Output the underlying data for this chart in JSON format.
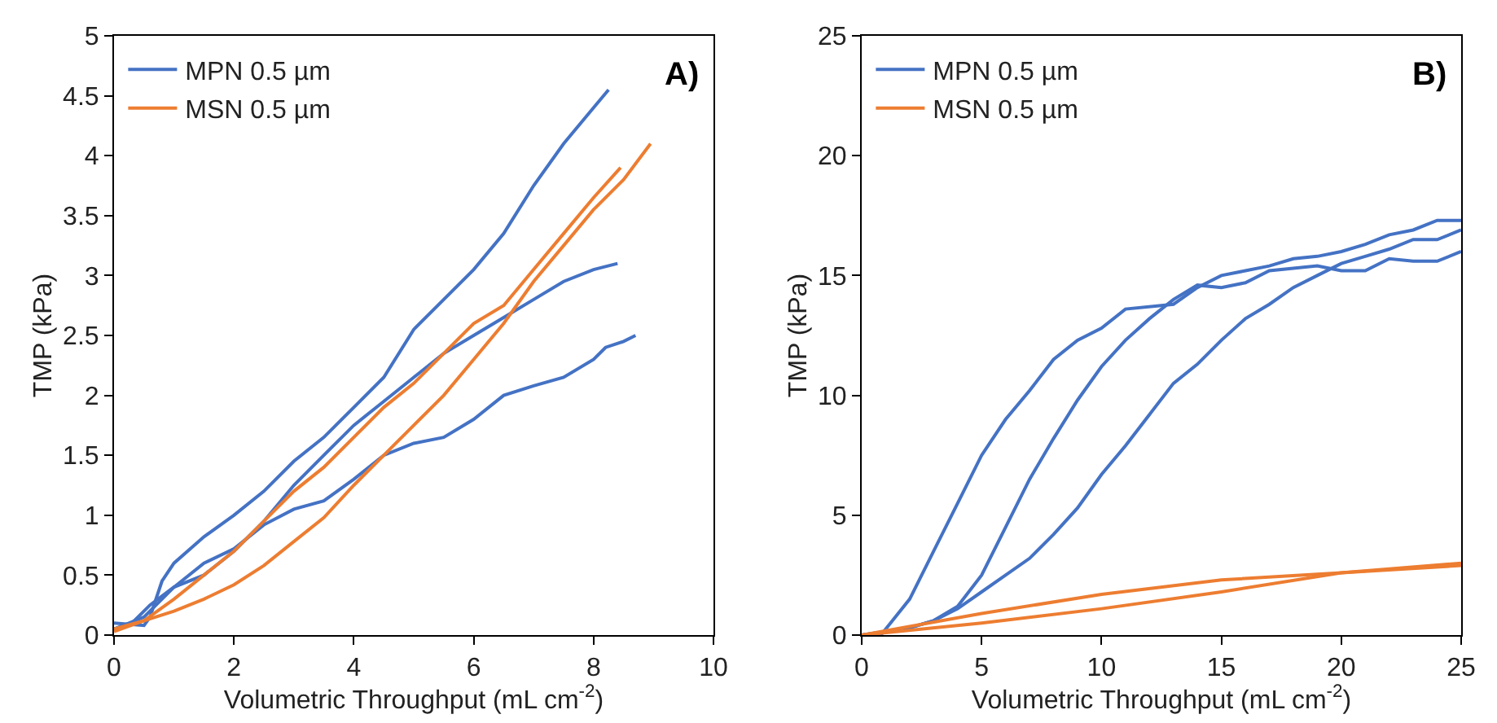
{
  "chart_data": [
    {
      "type": "line",
      "xlabel": "Volumetric Throughput (mL cm$^{-2}$)",
      "ylabel": "TMP (kPa)",
      "annotations": [
        "A)"
      ],
      "xlim": [
        0,
        10
      ],
      "xticks": [
        0,
        2,
        4,
        6,
        8,
        10
      ],
      "ylim": [
        0,
        5
      ],
      "yticks": [
        0,
        0.5,
        1,
        1.5,
        2,
        2.5,
        3,
        3.5,
        4,
        4.5,
        5
      ],
      "grid": false,
      "legend": "top left",
      "marker": "none",
      "line_style": "solid",
      "series": [
        {
          "name": "MPN 0.5 µm",
          "color": "#4472c4",
          "x": [
            0,
            0.5,
            0.6,
            0.8,
            1,
            1.5,
            2,
            2.5,
            3,
            3.5,
            4,
            4.5,
            5,
            5.5,
            6,
            6.5,
            7,
            7.5,
            8,
            8.25
          ],
          "values": [
            0.1,
            0.08,
            0.15,
            0.45,
            0.6,
            0.82,
            1.0,
            1.2,
            1.45,
            1.65,
            1.9,
            2.15,
            2.55,
            2.8,
            3.05,
            3.35,
            3.75,
            4.1,
            4.4,
            4.55
          ]
        },
        {
          "color": "#4472c4",
          "x": [
            0,
            0.3,
            0.6,
            1,
            1.5,
            2,
            2.5,
            3,
            3.5,
            4,
            4.5,
            5,
            5.5,
            6,
            6.5,
            7,
            7.5,
            8,
            8.4
          ],
          "values": [
            0.05,
            0.1,
            0.25,
            0.4,
            0.5,
            0.7,
            0.95,
            1.25,
            1.5,
            1.75,
            1.95,
            2.15,
            2.35,
            2.5,
            2.65,
            2.8,
            2.95,
            3.05,
            3.1
          ]
        },
        {
          "color": "#4472c4",
          "x": [
            0,
            0.5,
            1,
            1.5,
            2,
            2.5,
            3,
            3.5,
            4,
            4.5,
            5,
            5.5,
            6,
            6.5,
            7,
            7.5,
            8,
            8.2,
            8.5,
            8.7
          ],
          "values": [
            0.05,
            0.15,
            0.4,
            0.6,
            0.72,
            0.92,
            1.05,
            1.12,
            1.3,
            1.5,
            1.6,
            1.65,
            1.8,
            2.0,
            2.08,
            2.15,
            2.3,
            2.4,
            2.45,
            2.5
          ]
        },
        {
          "name": "MSN 0.5 µm",
          "color": "#ed7d31",
          "x": [
            0,
            0.5,
            1,
            1.5,
            2,
            2.5,
            3,
            3.5,
            4,
            4.5,
            5,
            5.5,
            6,
            6.5,
            7,
            7.5,
            8,
            8.45
          ],
          "values": [
            0.05,
            0.12,
            0.3,
            0.5,
            0.7,
            0.95,
            1.2,
            1.4,
            1.65,
            1.9,
            2.1,
            2.35,
            2.6,
            2.75,
            3.05,
            3.35,
            3.65,
            3.9
          ]
        },
        {
          "color": "#ed7d31",
          "x": [
            0,
            0.5,
            1,
            1.5,
            2,
            2.5,
            3,
            3.5,
            4,
            4.5,
            5,
            5.5,
            6,
            6.5,
            7,
            7.5,
            8,
            8.5,
            8.95
          ],
          "values": [
            0.03,
            0.12,
            0.2,
            0.3,
            0.42,
            0.58,
            0.78,
            0.98,
            1.25,
            1.5,
            1.75,
            2.0,
            2.3,
            2.6,
            2.95,
            3.25,
            3.55,
            3.8,
            4.1
          ]
        }
      ]
    },
    {
      "type": "line",
      "xlabel": "Volumetric Throughput (mL cm$^{-2}$)",
      "ylabel": "TMP (kPa)",
      "annotations": [
        "B)"
      ],
      "xlim": [
        0,
        25
      ],
      "xticks": [
        0,
        5,
        10,
        15,
        20,
        25
      ],
      "ylim": [
        0,
        25
      ],
      "yticks": [
        0,
        5,
        10,
        15,
        20,
        25
      ],
      "grid": false,
      "legend": "top left",
      "marker": "none",
      "line_style": "solid",
      "series": [
        {
          "name": "MPN 0.5 µm",
          "color": "#4472c4",
          "x": [
            0,
            0.8,
            2,
            3,
            4,
            5,
            6,
            7,
            8,
            9,
            10,
            11,
            13,
            14,
            15,
            16,
            17,
            18,
            19,
            20,
            21,
            22,
            23,
            24,
            25
          ],
          "values": [
            0,
            0,
            1.5,
            3.5,
            5.5,
            7.5,
            9,
            10.2,
            11.5,
            12.3,
            12.8,
            13.6,
            13.8,
            14.5,
            15,
            15.2,
            15.4,
            15.7,
            15.8,
            16,
            16.3,
            16.7,
            16.9,
            17.3,
            17.3
          ]
        },
        {
          "color": "#4472c4",
          "x": [
            0,
            2,
            3,
            4,
            5,
            6,
            7,
            8,
            9,
            10,
            11,
            12,
            13,
            14,
            15,
            16,
            17,
            18,
            19,
            20,
            21,
            22,
            23,
            24,
            25
          ],
          "values": [
            0,
            0.3,
            0.6,
            1.2,
            2.5,
            4.5,
            6.5,
            8.2,
            9.8,
            11.2,
            12.3,
            13.2,
            14.0,
            14.6,
            14.5,
            14.7,
            15.2,
            15.3,
            15.4,
            15.2,
            15.2,
            15.7,
            15.6,
            15.6,
            16.0
          ]
        },
        {
          "color": "#4472c4",
          "x": [
            0,
            2,
            3,
            4,
            5,
            6,
            7,
            8,
            9,
            10,
            11,
            12,
            13,
            14,
            15,
            16,
            17,
            18,
            19,
            20,
            21,
            22,
            23,
            24,
            25
          ],
          "values": [
            0,
            0.3,
            0.6,
            1.1,
            1.8,
            2.5,
            3.2,
            4.2,
            5.3,
            6.7,
            7.9,
            9.2,
            10.5,
            11.3,
            12.3,
            13.2,
            13.8,
            14.5,
            15.0,
            15.5,
            15.8,
            16.1,
            16.5,
            16.5,
            16.9
          ]
        },
        {
          "name": "MSN 0.5 µm",
          "color": "#ed7d31",
          "x": [
            0,
            5,
            10,
            15,
            20,
            25
          ],
          "values": [
            0,
            0.9,
            1.7,
            2.3,
            2.6,
            3.0
          ]
        },
        {
          "color": "#ed7d31",
          "x": [
            0,
            5,
            10,
            15,
            20,
            25
          ],
          "values": [
            0,
            0.5,
            1.1,
            1.8,
            2.6,
            2.9
          ]
        }
      ]
    }
  ]
}
